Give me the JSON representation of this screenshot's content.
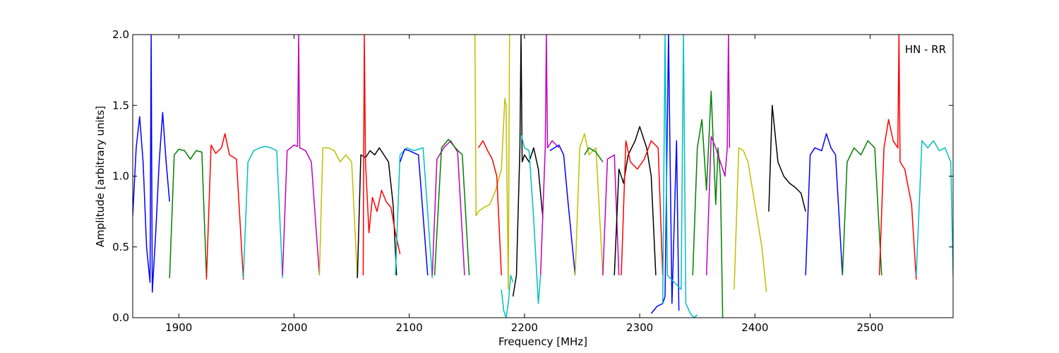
{
  "chart_data": {
    "type": "line",
    "title": "",
    "xlabel": "Frequency [MHz]",
    "ylabel": "Amplitude [arbitrary units]",
    "xlim": [
      1860,
      2572
    ],
    "ylim": [
      0.0,
      2.0
    ],
    "xticks": [
      1900,
      2000,
      2100,
      2200,
      2300,
      2400,
      2500
    ],
    "xtick_labels": [
      "1900",
      "2000",
      "2100",
      "2200",
      "2300",
      "2400",
      "2500"
    ],
    "yticks": [
      0.0,
      0.5,
      1.0,
      1.5,
      2.0
    ],
    "ytick_labels": [
      "0.0",
      "0.5",
      "1.0",
      "1.5",
      "2.0"
    ],
    "grid": false,
    "annotation": "HN - RR",
    "colors": {
      "blue": "#0000ff",
      "green": "#008000",
      "red": "#ff0000",
      "cyan": "#00bfbf",
      "magenta": "#bf00bf",
      "olive": "#bfbf00",
      "black": "#000000",
      "gray": "#bfbfbf"
    },
    "series": [
      {
        "color": "blue",
        "x": [
          1860,
          1863,
          1866,
          1869,
          1872,
          1875,
          1876,
          1877,
          1880,
          1883,
          1886,
          1889,
          1892
        ],
        "y": [
          0.72,
          1.2,
          1.42,
          1.1,
          0.5,
          0.25,
          2.0,
          0.18,
          0.6,
          1.1,
          1.45,
          1.1,
          0.82
        ]
      },
      {
        "color": "green",
        "x": [
          1892,
          1896,
          1900,
          1905,
          1910,
          1915,
          1920,
          1924
        ],
        "y": [
          0.28,
          1.15,
          1.19,
          1.18,
          1.12,
          1.18,
          1.17,
          0.29
        ]
      },
      {
        "color": "red",
        "x": [
          1924,
          1928,
          1932,
          1937,
          1940,
          1944,
          1950,
          1956
        ],
        "y": [
          0.27,
          1.22,
          1.16,
          1.2,
          1.3,
          1.15,
          1.12,
          0.27
        ]
      },
      {
        "color": "cyan",
        "x": [
          1956,
          1960,
          1965,
          1970,
          1975,
          1980,
          1985,
          1990
        ],
        "y": [
          0.28,
          1.1,
          1.18,
          1.2,
          1.21,
          1.2,
          1.18,
          0.28
        ]
      },
      {
        "color": "magenta",
        "x": [
          1990,
          1994,
          2000,
          2003,
          2004,
          2005,
          2010,
          2015,
          2022
        ],
        "y": [
          0.3,
          1.18,
          1.22,
          1.21,
          2.0,
          1.2,
          1.18,
          1.1,
          0.3
        ]
      },
      {
        "color": "olive",
        "x": [
          2022,
          2025,
          2030,
          2035,
          2040,
          2045,
          2050,
          2055
        ],
        "y": [
          0.3,
          1.2,
          1.2,
          1.18,
          1.1,
          1.15,
          1.1,
          0.28
        ]
      },
      {
        "color": "black",
        "x": [
          2055,
          2058,
          2062,
          2066,
          2070,
          2074,
          2078,
          2082,
          2086,
          2089
        ],
        "y": [
          0.28,
          1.15,
          1.13,
          1.18,
          1.15,
          1.2,
          1.15,
          1.1,
          0.8,
          0.3
        ]
      },
      {
        "color": "red",
        "x": [
          2060,
          2061,
          2062,
          2065,
          2068,
          2072,
          2076,
          2080,
          2084,
          2088,
          2092
        ],
        "y": [
          0.3,
          2.0,
          1.1,
          0.6,
          0.85,
          0.75,
          0.9,
          0.82,
          0.78,
          0.6,
          0.45
        ]
      },
      {
        "color": "cyan",
        "x": [
          2088,
          2092,
          2098,
          2104,
          2112,
          2120
        ],
        "y": [
          0.3,
          1.15,
          1.2,
          1.18,
          1.2,
          0.28
        ]
      },
      {
        "color": "blue",
        "x": [
          2092,
          2096,
          2100,
          2108,
          2116
        ],
        "y": [
          1.1,
          1.19,
          1.18,
          1.15,
          0.3
        ]
      },
      {
        "color": "magenta",
        "x": [
          2120,
          2124,
          2130,
          2136,
          2142,
          2148
        ],
        "y": [
          0.3,
          1.12,
          1.2,
          1.25,
          1.17,
          0.3
        ]
      },
      {
        "color": "green",
        "x": [
          2122,
          2128,
          2134,
          2140,
          2146,
          2152
        ],
        "y": [
          0.3,
          1.2,
          1.26,
          1.2,
          1.15,
          0.3
        ]
      },
      {
        "color": "olive",
        "x": [
          2157,
          2158,
          2160,
          2165,
          2170,
          2175,
          2180,
          2183,
          2184,
          2186,
          2187
        ],
        "y": [
          2.0,
          0.72,
          0.75,
          0.78,
          0.8,
          0.9,
          1.05,
          1.55,
          1.5,
          0.2,
          2.0
        ]
      },
      {
        "color": "red",
        "x": [
          2160,
          2164,
          2168,
          2172,
          2176,
          2180
        ],
        "y": [
          1.2,
          1.25,
          1.18,
          1.12,
          1.0,
          0.3
        ]
      },
      {
        "color": "cyan",
        "x": [
          2180,
          2182,
          2184,
          2186,
          2188,
          2190
        ],
        "y": [
          0.2,
          0.05,
          0.0,
          0.1,
          0.3,
          0.25
        ]
      },
      {
        "color": "black",
        "x": [
          2190,
          2193,
          2196,
          2197,
          2198,
          2200,
          2204,
          2208,
          2212,
          2216
        ],
        "y": [
          0.15,
          0.3,
          1.2,
          2.0,
          1.1,
          1.15,
          1.1,
          1.2,
          1.05,
          0.7
        ]
      },
      {
        "color": "cyan",
        "x": [
          2197,
          2200,
          2204,
          2208,
          2212,
          2214
        ],
        "y": [
          1.3,
          1.2,
          1.18,
          0.7,
          0.1,
          0.3
        ]
      },
      {
        "color": "magenta",
        "x": [
          2214,
          2218,
          2219,
          2220,
          2224,
          2230
        ],
        "y": [
          0.3,
          1.2,
          2.0,
          1.2,
          1.25,
          1.2
        ]
      },
      {
        "color": "blue",
        "x": [
          2222,
          2226,
          2230,
          2234,
          2238,
          2244
        ],
        "y": [
          1.18,
          1.2,
          1.22,
          1.15,
          0.8,
          0.3
        ]
      },
      {
        "color": "olive",
        "x": [
          2244,
          2248,
          2252,
          2256,
          2262,
          2268
        ],
        "y": [
          0.3,
          1.2,
          1.3,
          1.15,
          1.2,
          0.3
        ]
      },
      {
        "color": "green",
        "x": [
          2252,
          2256,
          2262,
          2268
        ],
        "y": [
          1.15,
          1.2,
          1.17,
          1.1
        ]
      },
      {
        "color": "magenta",
        "x": [
          2268,
          2272,
          2278,
          2282
        ],
        "y": [
          0.3,
          1.12,
          1.15,
          0.3
        ]
      },
      {
        "color": "black",
        "x": [
          2278,
          2282,
          2286,
          2290,
          2296,
          2300,
          2306,
          2310,
          2314
        ],
        "y": [
          0.3,
          1.05,
          0.95,
          1.15,
          1.25,
          1.35,
          1.2,
          1.0,
          0.3
        ]
      },
      {
        "color": "red",
        "x": [
          2284,
          2288,
          2292,
          2298,
          2304,
          2310,
          2316,
          2320
        ],
        "y": [
          0.3,
          1.25,
          1.1,
          1.05,
          1.12,
          1.25,
          1.2,
          0.3
        ]
      },
      {
        "color": "blue",
        "x": [
          2310,
          2315,
          2320,
          2322,
          2325,
          2328,
          2332,
          2334
        ],
        "y": [
          0.03,
          0.08,
          0.1,
          0.15,
          2.0,
          0.1,
          1.25,
          0.05
        ]
      },
      {
        "color": "cyan",
        "x": [
          2320,
          2322,
          2324,
          2336,
          2338,
          2340,
          2344,
          2347,
          2350
        ],
        "y": [
          0.1,
          2.0,
          0.3,
          0.2,
          2.0,
          0.1,
          0.03,
          0.0,
          0.02
        ]
      },
      {
        "color": "green",
        "x": [
          2346,
          2350,
          2354,
          2358,
          2362,
          2366,
          2368,
          2370,
          2372
        ],
        "y": [
          0.3,
          1.2,
          1.4,
          0.9,
          1.6,
          0.8,
          1.2,
          1.0,
          0.0
        ]
      },
      {
        "color": "magenta",
        "x": [
          2358,
          2362,
          2366,
          2370,
          2374,
          2376,
          2377,
          2378
        ],
        "y": [
          0.3,
          1.28,
          1.2,
          1.1,
          1.0,
          1.2,
          2.0,
          1.2
        ]
      },
      {
        "color": "olive",
        "x": [
          2382,
          2386,
          2390,
          2394,
          2398,
          2402,
          2406,
          2410
        ],
        "y": [
          0.2,
          1.2,
          1.18,
          1.1,
          0.9,
          0.7,
          0.5,
          0.18
        ]
      },
      {
        "color": "black",
        "x": [
          2412,
          2415,
          2420,
          2425,
          2430,
          2435,
          2440,
          2444
        ],
        "y": [
          0.75,
          1.5,
          1.1,
          1.0,
          0.95,
          0.92,
          0.88,
          0.75
        ]
      },
      {
        "color": "blue",
        "x": [
          2444,
          2448,
          2452,
          2458,
          2462,
          2466,
          2470,
          2476
        ],
        "y": [
          0.3,
          1.15,
          1.2,
          1.18,
          1.3,
          1.2,
          1.15,
          0.3
        ]
      },
      {
        "color": "green",
        "x": [
          2476,
          2480,
          2486,
          2492,
          2498,
          2504,
          2510
        ],
        "y": [
          0.3,
          1.1,
          1.2,
          1.15,
          1.25,
          1.2,
          0.3
        ]
      },
      {
        "color": "red",
        "x": [
          2508,
          2512,
          2516,
          2520,
          2524,
          2525,
          2526,
          2530,
          2536,
          2540
        ],
        "y": [
          0.3,
          1.2,
          1.4,
          1.25,
          1.2,
          2.0,
          1.1,
          1.05,
          0.8,
          0.27
        ]
      },
      {
        "color": "cyan",
        "x": [
          2540,
          2545,
          2550,
          2555,
          2560,
          2565,
          2570,
          2572
        ],
        "y": [
          0.3,
          1.25,
          1.2,
          1.25,
          1.18,
          1.2,
          1.1,
          0.3
        ]
      }
    ]
  }
}
